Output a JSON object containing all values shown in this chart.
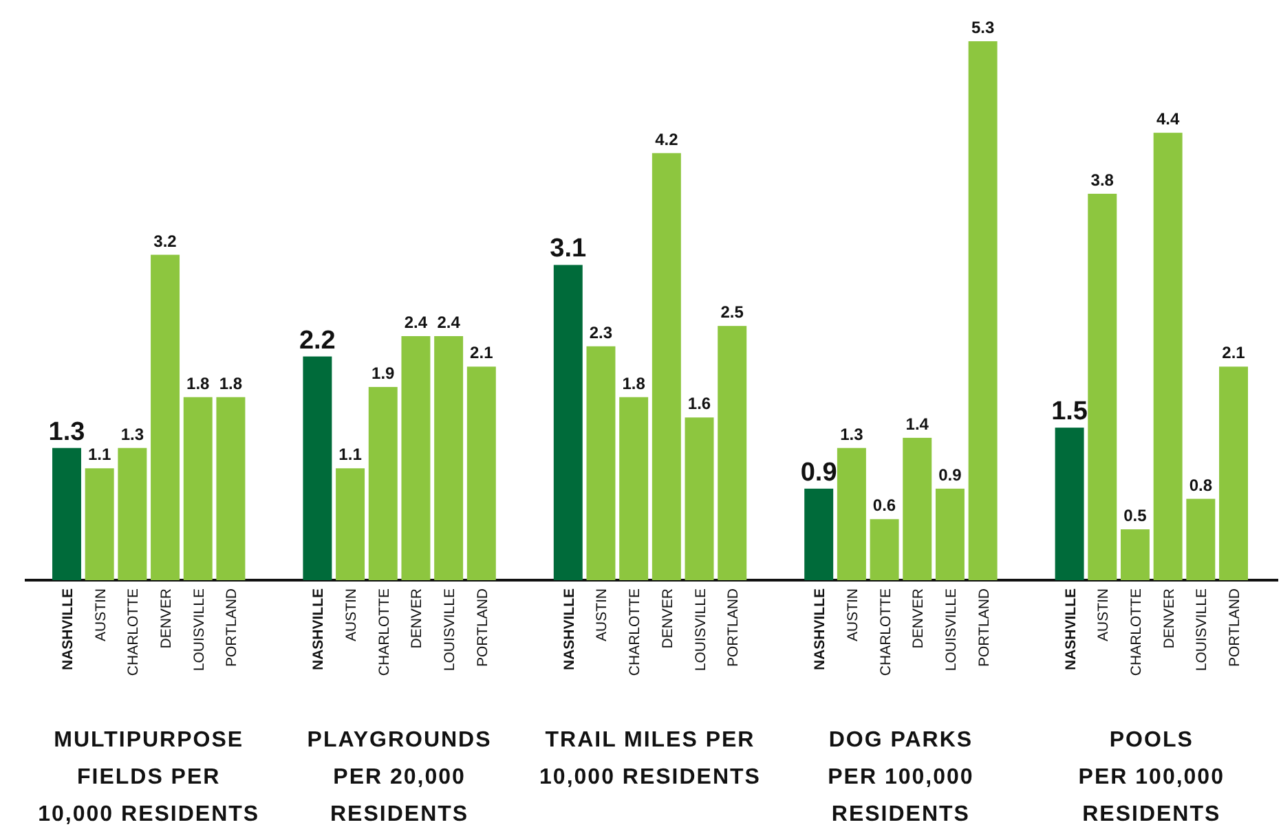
{
  "chart_data": [
    {
      "type": "bar",
      "xlabel": "MULTIPURPOSE\nFIELDS PER\n10,000 RESIDENTS",
      "categories": [
        "NASHVILLE",
        "AUSTIN",
        "CHARLOTTE",
        "DENVER",
        "LOUISVILLE",
        "PORTLAND"
      ],
      "values": [
        1.3,
        1.1,
        1.3,
        3.2,
        1.8,
        1.8
      ],
      "colors": [
        "#006b3a",
        "#8dc63f",
        "#8dc63f",
        "#8dc63f",
        "#8dc63f",
        "#8dc63f"
      ],
      "data_labels": true
    },
    {
      "type": "bar",
      "xlabel": "PLAYGROUNDS\nPER 20,000\nRESIDENTS",
      "categories": [
        "NASHVILLE",
        "AUSTIN",
        "CHARLOTTE",
        "DENVER",
        "LOUISVILLE",
        "PORTLAND"
      ],
      "values": [
        2.2,
        1.1,
        1.9,
        2.4,
        2.4,
        2.1
      ],
      "colors": [
        "#006b3a",
        "#8dc63f",
        "#8dc63f",
        "#8dc63f",
        "#8dc63f",
        "#8dc63f"
      ],
      "data_labels": true
    },
    {
      "type": "bar",
      "xlabel": "TRAIL MILES PER\n10,000 RESIDENTS",
      "categories": [
        "NASHVILLE",
        "AUSTIN",
        "CHARLOTTE",
        "DENVER",
        "LOUISVILLE",
        "PORTLAND"
      ],
      "values": [
        3.1,
        2.3,
        1.8,
        4.2,
        1.6,
        2.5
      ],
      "colors": [
        "#006b3a",
        "#8dc63f",
        "#8dc63f",
        "#8dc63f",
        "#8dc63f",
        "#8dc63f"
      ],
      "data_labels": true
    },
    {
      "type": "bar",
      "xlabel": "DOG PARKS\nPER 100,000\nRESIDENTS",
      "categories": [
        "NASHVILLE",
        "AUSTIN",
        "CHARLOTTE",
        "DENVER",
        "LOUISVILLE",
        "PORTLAND"
      ],
      "values": [
        0.9,
        1.3,
        0.6,
        1.4,
        0.9,
        5.3
      ],
      "colors": [
        "#006b3a",
        "#8dc63f",
        "#8dc63f",
        "#8dc63f",
        "#8dc63f",
        "#8dc63f"
      ],
      "data_labels": true
    },
    {
      "type": "bar",
      "xlabel": "POOLS\nPER 100,000\nRESIDENTS",
      "categories": [
        "NASHVILLE",
        "AUSTIN",
        "CHARLOTTE",
        "DENVER",
        "LOUISVILLE",
        "PORTLAND"
      ],
      "values": [
        1.5,
        3.8,
        0.5,
        4.4,
        0.8,
        2.1
      ],
      "colors": [
        "#006b3a",
        "#8dc63f",
        "#8dc63f",
        "#8dc63f",
        "#8dc63f",
        "#8dc63f"
      ],
      "data_labels": true
    }
  ]
}
